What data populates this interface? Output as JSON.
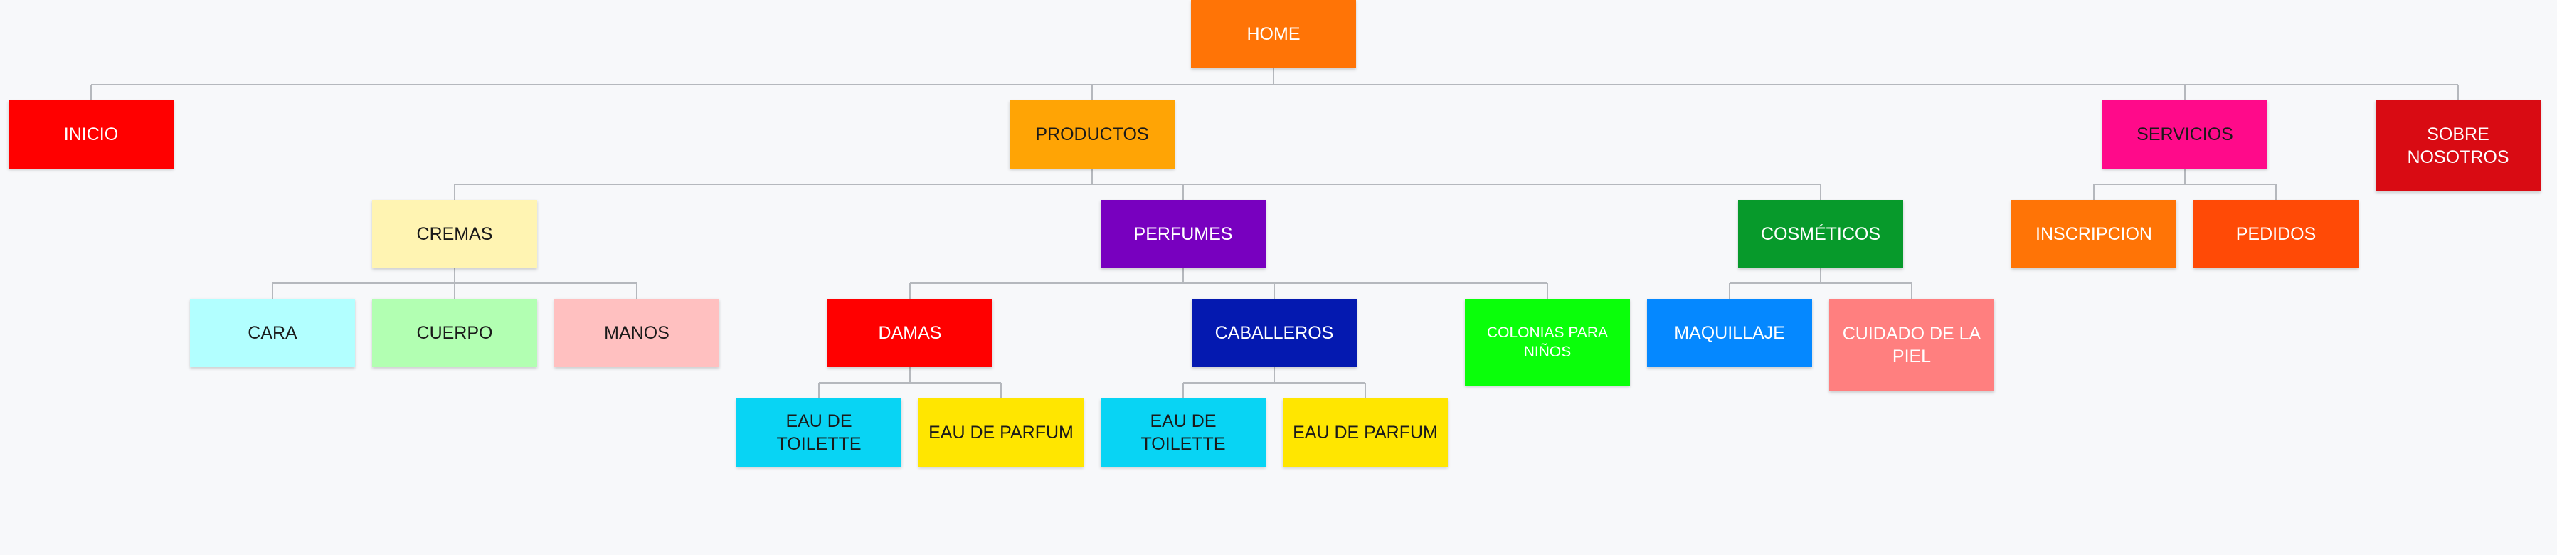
{
  "diagram": {
    "root": {
      "label": "HOME",
      "color": "#ff7406",
      "text_color": "#ffffff"
    },
    "level1": [
      {
        "id": "inicio",
        "label": "INICIO",
        "color": "#ff0000",
        "text_color": "#ffffff"
      },
      {
        "id": "productos",
        "label": "PRODUCTOS",
        "color": "#ffa405",
        "text_color": "#1a1a1a"
      },
      {
        "id": "servicios",
        "label": "SERVICIOS",
        "color": "#ff0a8a",
        "text_color": "#1a1a1a"
      },
      {
        "id": "sobre-nosotros",
        "label": "SOBRE NOSOTROS",
        "color": "#d90b13",
        "text_color": "#ffffff"
      }
    ],
    "productos": {
      "cremas": {
        "label": "CREMAS",
        "color": "#fff4b2",
        "text_color": "#1a1a1a",
        "children": [
          {
            "label": "CARA",
            "color": "#b2ffff",
            "text_color": "#1a1a1a"
          },
          {
            "label": "CUERPO",
            "color": "#b2ffb2",
            "text_color": "#1a1a1a"
          },
          {
            "label": "MANOS",
            "color": "#ffc0c0",
            "text_color": "#1a1a1a"
          }
        ]
      },
      "perfumes": {
        "label": "PERFUMES",
        "color": "#7800bf",
        "text_color": "#ffffff",
        "damas": {
          "label": "DAMAS",
          "color": "#ff0000",
          "text_color": "#ffffff",
          "children": [
            {
              "label": "EAU DE TOILETTE",
              "color": "#08d4f4",
              "text_color": "#1a1a1a"
            },
            {
              "label": "EAU DE PARFUM",
              "color": "#ffe600",
              "text_color": "#1a1a1a"
            }
          ]
        },
        "caballeros": {
          "label": "CABALLEROS",
          "color": "#0419b0",
          "text_color": "#ffffff",
          "children": [
            {
              "label": "EAU DE TOILETTE",
              "color": "#08d4f4",
              "text_color": "#1a1a1a"
            },
            {
              "label": "EAU DE PARFUM",
              "color": "#ffe600",
              "text_color": "#1a1a1a"
            }
          ]
        },
        "colonias": {
          "label": "COLONIAS PARA NIÑOS",
          "color": "#0aff0a",
          "text_color": "#ffffff"
        }
      },
      "cosmeticos": {
        "label": "COSMÉTICOS",
        "color": "#079a2b",
        "text_color": "#ffffff",
        "children": [
          {
            "label": "MAQUILLAJE",
            "color": "#0588ff",
            "text_color": "#ffffff"
          },
          {
            "label": "CUIDADO DE LA PIEL",
            "color": "#ff7f7f",
            "text_color": "#ffffff"
          }
        ]
      }
    },
    "servicios_children": [
      {
        "label": "INSCRIPCION",
        "color": "#ff7406",
        "text_color": "#ffffff"
      },
      {
        "label": "PEDIDOS",
        "color": "#ff4a06",
        "text_color": "#ffffff"
      }
    ],
    "connector_color": "#b5b8bd"
  }
}
